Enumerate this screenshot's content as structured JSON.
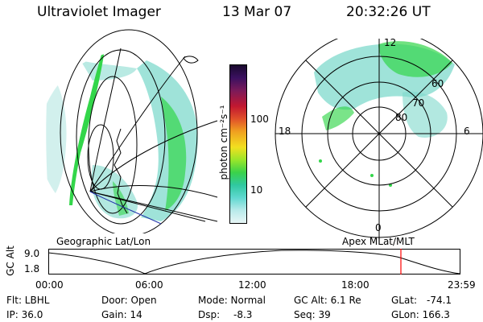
{
  "header": {
    "title": "Ultraviolet Imager",
    "date": "13 Mar 07",
    "time": "20:32:26 UT"
  },
  "colorbar": {
    "label": "photon cm⁻²s⁻¹",
    "ticks": [
      "100",
      "10"
    ]
  },
  "left_panel": {
    "caption": "Geographic Lat/Lon"
  },
  "right_panel": {
    "caption": "Apex MLat/MLT",
    "mlt_labels": [
      "12",
      "18",
      "6",
      "0"
    ],
    "lat_labels": [
      "60",
      "70",
      "80"
    ]
  },
  "altitude_plot": {
    "ylabel": "GC Alt",
    "yticks": [
      "9.0",
      "1.8"
    ],
    "xticks": [
      "00:00",
      "06:00",
      "12:00",
      "18:00",
      "23:59"
    ],
    "marker_color": "#ff0000"
  },
  "info": {
    "filter": "Flt: LBHL",
    "ip": "IP: 36.0",
    "door": "Door: Open",
    "gain": "Gain: 14",
    "mode": "Mode: Normal",
    "dsp_label": "Dsp:",
    "dsp_value": "-8.3",
    "gc_alt": "GC Alt: 6.1 Re",
    "seq": "Seq: 39",
    "glat_label": "GLat:",
    "glat_value": "-74.1",
    "glon": "GLon: 166.3"
  },
  "colors": {
    "aurora_green": "#33d64a",
    "aurora_cyan": "#3cc8c0",
    "background": "#ffffff"
  }
}
